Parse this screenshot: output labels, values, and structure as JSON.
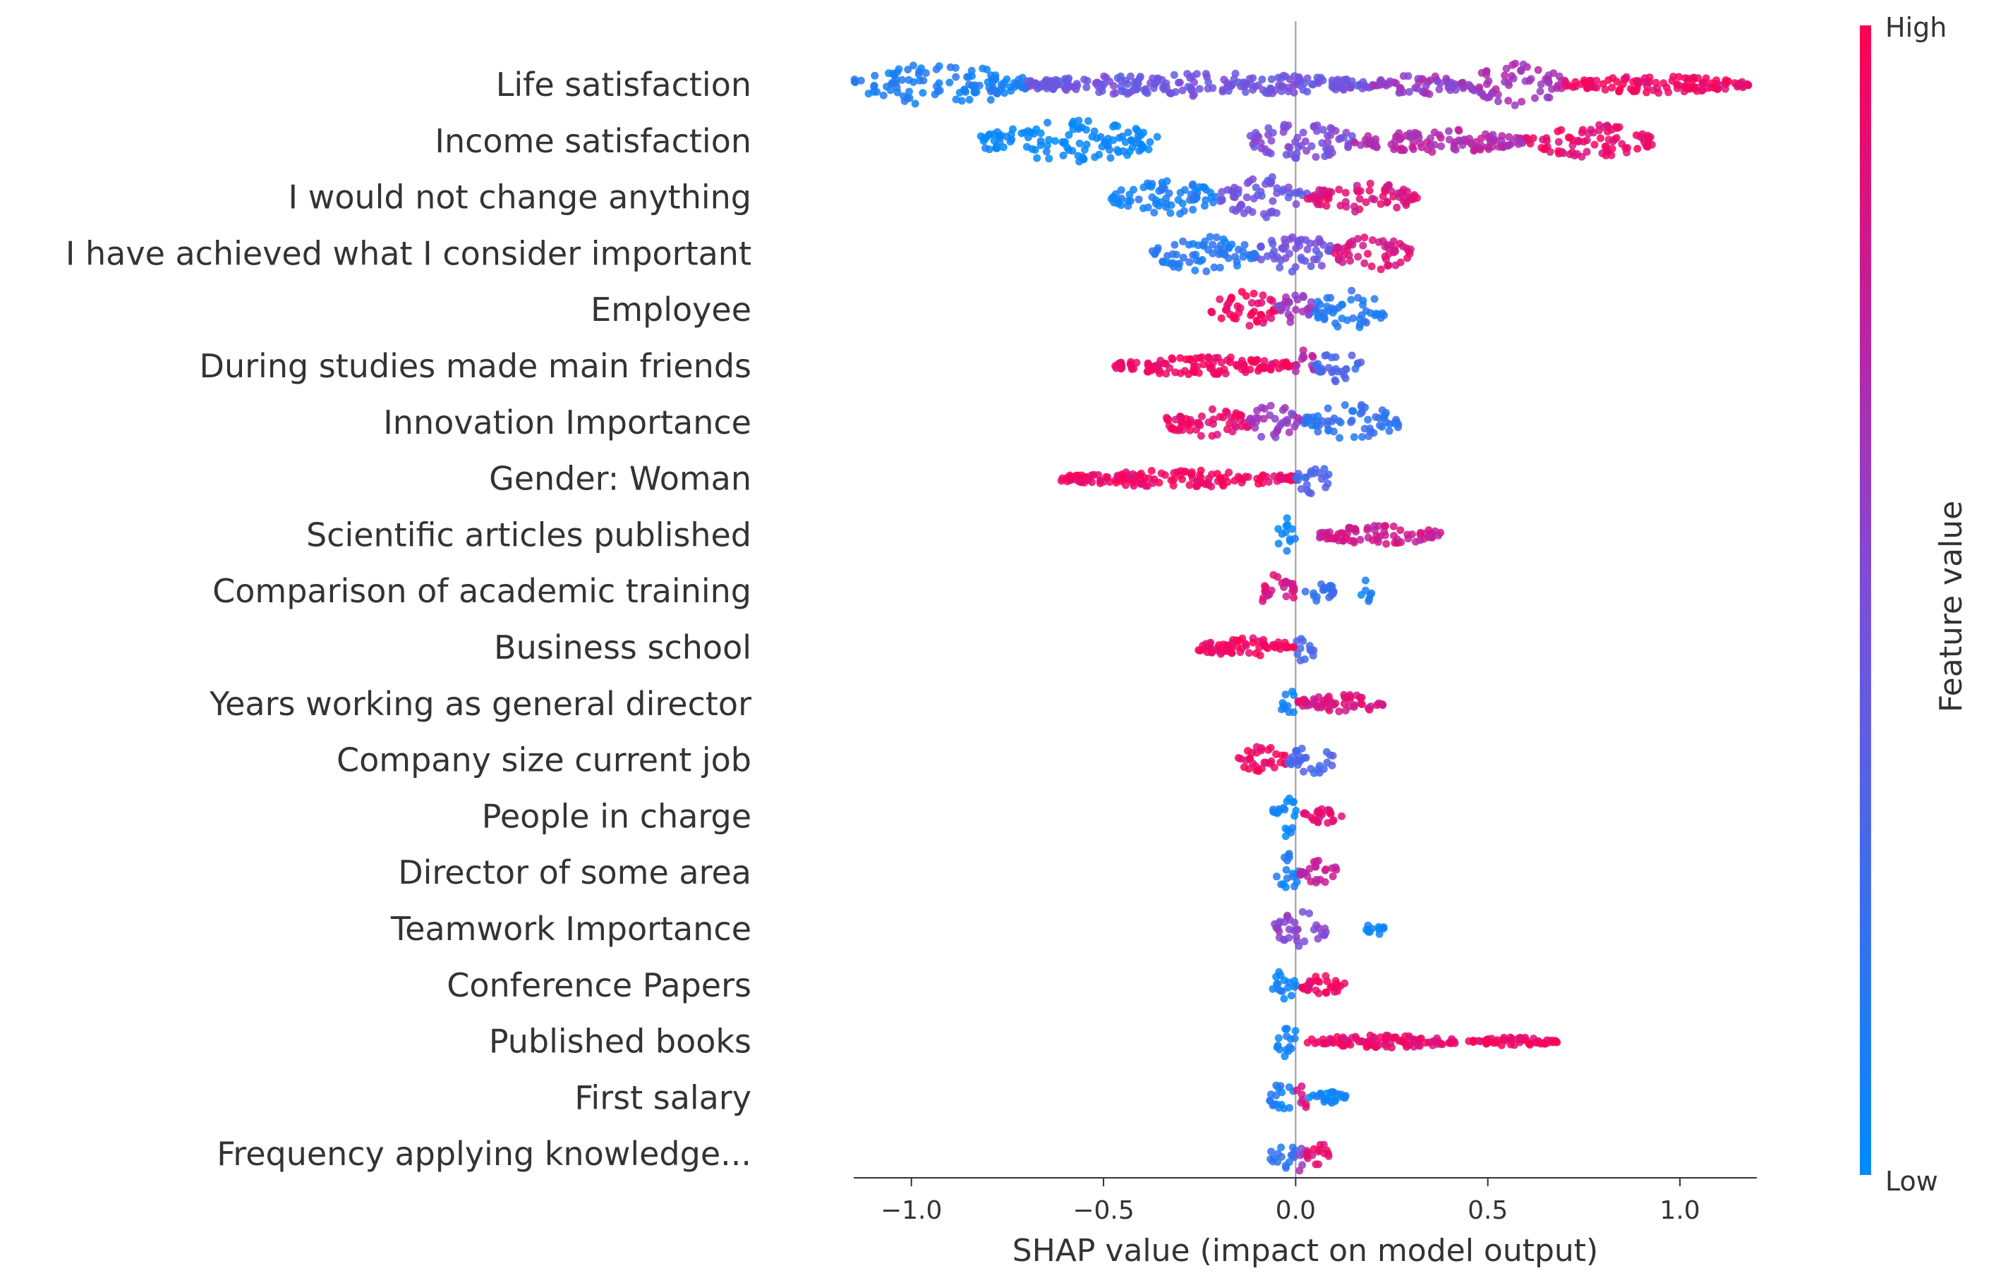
{
  "chart_data": {
    "type": "scatter",
    "subtype": "shap-beeswarm-summary",
    "xlabel": "SHAP value (impact on model output)",
    "xlim": [
      -1.15,
      1.2
    ],
    "xticks": [
      -1.0,
      -0.5,
      0.0,
      0.5,
      1.0
    ],
    "xtick_labels": [
      "−1.0",
      "−0.5",
      "0.0",
      "0.5",
      "1.0"
    ],
    "colorbar": {
      "label": "Feature value",
      "high_label": "High",
      "low_label": "Low",
      "high_color": "#ff0052",
      "low_color": "#008bfb"
    },
    "features": [
      {
        "name": "Life satisfaction",
        "segments": [
          {
            "range": [
              -1.15,
              -0.7
            ],
            "color": 0.1,
            "width": 1.0
          },
          {
            "range": [
              -0.7,
              0.2
            ],
            "color": 0.45,
            "width": 0.55
          },
          {
            "range": [
              0.2,
              0.45
            ],
            "color": 0.6,
            "width": 0.5
          },
          {
            "range": [
              0.45,
              0.7
            ],
            "color": 0.65,
            "width": 1.0
          },
          {
            "range": [
              0.7,
              1.18
            ],
            "color": 0.95,
            "width": 0.4
          }
        ]
      },
      {
        "name": "Income satisfaction",
        "segments": [
          {
            "range": [
              -0.82,
              -0.35
            ],
            "color": 0.02,
            "width": 1.0
          },
          {
            "range": [
              -0.12,
              0.15
            ],
            "color": 0.5,
            "width": 0.9
          },
          {
            "range": [
              0.15,
              0.6
            ],
            "color": 0.7,
            "width": 0.55
          },
          {
            "range": [
              0.6,
              0.93
            ],
            "color": 0.92,
            "width": 0.8
          }
        ]
      },
      {
        "name": "I would not change anything",
        "segments": [
          {
            "range": [
              -0.48,
              -0.2
            ],
            "color": 0.1,
            "width": 0.85
          },
          {
            "range": [
              -0.2,
              0.03
            ],
            "color": 0.45,
            "width": 1.0
          },
          {
            "range": [
              0.03,
              0.32
            ],
            "color": 0.85,
            "width": 0.7
          }
        ]
      },
      {
        "name": "I have achieved what I consider important",
        "segments": [
          {
            "range": [
              -0.38,
              -0.1
            ],
            "color": 0.15,
            "width": 0.85
          },
          {
            "range": [
              -0.1,
              0.1
            ],
            "color": 0.45,
            "width": 1.0
          },
          {
            "range": [
              0.1,
              0.3
            ],
            "color": 0.85,
            "width": 0.8
          }
        ]
      },
      {
        "name": "Employee",
        "segments": [
          {
            "range": [
              -0.22,
              -0.05
            ],
            "color": 0.95,
            "width": 1.0
          },
          {
            "range": [
              -0.05,
              0.05
            ],
            "color": 0.6,
            "width": 0.8
          },
          {
            "range": [
              0.05,
              0.23
            ],
            "color": 0.15,
            "width": 1.0
          }
        ]
      },
      {
        "name": "During studies made main friends",
        "segments": [
          {
            "range": [
              -0.47,
              0.0
            ],
            "color": 0.95,
            "width": 0.45
          },
          {
            "range": [
              0.0,
              0.05
            ],
            "color": 0.7,
            "width": 0.9
          },
          {
            "range": [
              0.05,
              0.17
            ],
            "color": 0.3,
            "width": 0.8
          }
        ]
      },
      {
        "name": "Innovation Importance",
        "segments": [
          {
            "range": [
              -0.34,
              -0.12
            ],
            "color": 0.9,
            "width": 0.7
          },
          {
            "range": [
              -0.12,
              0.02
            ],
            "color": 0.6,
            "width": 1.0
          },
          {
            "range": [
              0.02,
              0.27
            ],
            "color": 0.2,
            "width": 0.9
          }
        ]
      },
      {
        "name": "Gender: Woman",
        "segments": [
          {
            "range": [
              -0.61,
              0.0
            ],
            "color": 0.95,
            "width": 0.4
          },
          {
            "range": [
              0.0,
              0.09
            ],
            "color": 0.3,
            "width": 0.8
          }
        ]
      },
      {
        "name": "Scientific articles published",
        "segments": [
          {
            "range": [
              -0.05,
              0.0
            ],
            "color": 0.02,
            "width": 0.9
          },
          {
            "range": [
              0.06,
              0.38
            ],
            "color": 0.8,
            "width": 0.45
          }
        ]
      },
      {
        "name": "Comparison of academic training",
        "segments": [
          {
            "range": [
              -0.1,
              0.0
            ],
            "color": 0.85,
            "width": 0.8
          },
          {
            "range": [
              0.02,
              0.1
            ],
            "color": 0.25,
            "width": 0.5
          },
          {
            "range": [
              0.17,
              0.2
            ],
            "color": 0.1,
            "width": 0.6
          }
        ]
      },
      {
        "name": "Business school",
        "segments": [
          {
            "range": [
              -0.26,
              0.0
            ],
            "color": 0.95,
            "width": 0.45
          },
          {
            "range": [
              0.0,
              0.05
            ],
            "color": 0.3,
            "width": 0.85
          }
        ]
      },
      {
        "name": "Years working as general director",
        "segments": [
          {
            "range": [
              -0.04,
              0.0
            ],
            "color": 0.05,
            "width": 0.9
          },
          {
            "range": [
              0.0,
              0.23
            ],
            "color": 0.85,
            "width": 0.45
          }
        ]
      },
      {
        "name": "Company size current job",
        "segments": [
          {
            "range": [
              -0.15,
              -0.02
            ],
            "color": 0.95,
            "width": 0.7
          },
          {
            "range": [
              -0.02,
              0.1
            ],
            "color": 0.3,
            "width": 0.7
          }
        ]
      },
      {
        "name": "People in charge",
        "segments": [
          {
            "range": [
              -0.06,
              0.02
            ],
            "color": 0.05,
            "width": 1.0
          },
          {
            "range": [
              0.02,
              0.12
            ],
            "color": 0.9,
            "width": 0.45
          }
        ]
      },
      {
        "name": "Director of some area",
        "segments": [
          {
            "range": [
              -0.06,
              0.01
            ],
            "color": 0.1,
            "width": 1.0
          },
          {
            "range": [
              0.01,
              0.11
            ],
            "color": 0.75,
            "width": 0.6
          }
        ]
      },
      {
        "name": "Teamwork Importance",
        "segments": [
          {
            "range": [
              -0.06,
              0.08
            ],
            "color": 0.55,
            "width": 0.85
          },
          {
            "range": [
              0.18,
              0.23
            ],
            "color": 0.05,
            "width": 0.35
          }
        ]
      },
      {
        "name": "Conference Papers",
        "segments": [
          {
            "range": [
              -0.06,
              0.01
            ],
            "color": 0.05,
            "width": 0.8
          },
          {
            "range": [
              0.01,
              0.13
            ],
            "color": 0.95,
            "width": 0.45
          }
        ]
      },
      {
        "name": "Published books",
        "segments": [
          {
            "range": [
              -0.05,
              0.01
            ],
            "color": 0.05,
            "width": 0.85
          },
          {
            "range": [
              0.03,
              0.42
            ],
            "color": 0.9,
            "width": 0.3
          },
          {
            "range": [
              0.45,
              0.68
            ],
            "color": 0.95,
            "width": 0.2
          }
        ]
      },
      {
        "name": "First salary",
        "segments": [
          {
            "range": [
              -0.07,
              0.0
            ],
            "color": 0.1,
            "width": 0.7
          },
          {
            "range": [
              0.0,
              0.03
            ],
            "color": 0.85,
            "width": 0.85
          },
          {
            "range": [
              0.03,
              0.13
            ],
            "color": 0.05,
            "width": 0.3
          }
        ]
      },
      {
        "name": "Frequency applying knowledge...",
        "segments": [
          {
            "range": [
              -0.07,
              0.0
            ],
            "color": 0.2,
            "width": 0.8
          },
          {
            "range": [
              0.0,
              0.03
            ],
            "color": 0.6,
            "width": 1.0
          },
          {
            "range": [
              0.03,
              0.09
            ],
            "color": 0.9,
            "width": 0.6
          }
        ]
      }
    ]
  }
}
